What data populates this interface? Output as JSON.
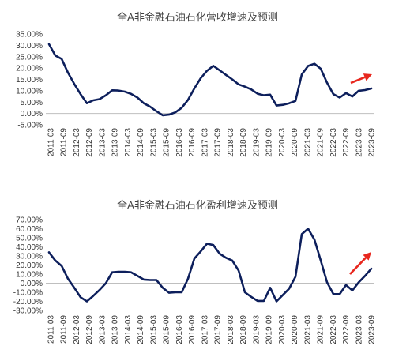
{
  "charts": [
    {
      "type": "line",
      "title": "全A非金融石油石化营收增速及预测",
      "xlabel": "",
      "ylabel": "",
      "ylim": [
        -5,
        35
      ],
      "yticks": [
        -5,
        0,
        5,
        10,
        15,
        20,
        25,
        30,
        35
      ],
      "ytick_labels": [
        "-5.00%",
        "0.00%",
        "5.00%",
        "10.00%",
        "15.00%",
        "20.00%",
        "25.00%",
        "30.00%",
        "35.00%"
      ],
      "categories": [
        "2011-03",
        "2011-09",
        "2012-03",
        "2012-09",
        "2013-03",
        "2013-09",
        "2014-03",
        "2014-09",
        "2015-03",
        "2015-09",
        "2016-03",
        "2016-09",
        "2017-03",
        "2017-09",
        "2018-03",
        "2018-09",
        "2019-03",
        "2019-09",
        "2020-03",
        "2020-09",
        "2021-03",
        "2021-09",
        "2022-03",
        "2022-09",
        "2023-03",
        "2023-09"
      ],
      "series": [
        {
          "values": [
            30.5,
            25.5,
            24,
            18,
            13,
            8.5,
            4.5,
            5.8,
            6.3,
            8,
            10.2,
            10.1,
            9.6,
            8.6,
            7,
            4.5,
            3,
            1,
            -0.8,
            -0.5,
            0.5,
            2.5,
            6,
            11,
            15.5,
            18.8,
            21,
            19,
            17,
            15,
            12.8,
            11.8,
            10.6,
            8.7,
            8,
            8.3,
            3.5,
            3.8,
            4.5,
            5.5,
            17.2,
            20.9,
            21.9,
            19.7,
            13.5,
            8.5,
            7,
            9,
            7.5,
            10,
            10.3,
            11
          ]
        }
      ],
      "color": "#0d1f5c",
      "arrow_color": "#e8271e",
      "grid": false,
      "legend": "none"
    },
    {
      "type": "line",
      "title": "全A非金融石油石化盈利增速及预测",
      "xlabel": "",
      "ylabel": "",
      "ylim": [
        -30,
        70
      ],
      "yticks": [
        -30,
        -20,
        -10,
        0,
        10,
        20,
        30,
        40,
        50,
        60,
        70
      ],
      "ytick_labels": [
        "-30.00%",
        "-20.00%",
        "-10.00%",
        "0.00%",
        "10.00%",
        "20.00%",
        "30.00%",
        "40.00%",
        "50.00%",
        "60.00%",
        "70.00%"
      ],
      "categories": [
        "2011-03",
        "2011-09",
        "2012-03",
        "2012-09",
        "2013-03",
        "2013-09",
        "2014-03",
        "2014-09",
        "2015-03",
        "2015-09",
        "2016-03",
        "2016-09",
        "2017-03",
        "2017-09",
        "2018-03",
        "2018-09",
        "2019-03",
        "2019-09",
        "2020-03",
        "2020-09",
        "2021-03",
        "2021-09",
        "2022-03",
        "2022-09",
        "2023-03",
        "2023-09"
      ],
      "series": [
        {
          "values": [
            34,
            25,
            19,
            5,
            -5,
            -15.5,
            -20,
            -14,
            -7.5,
            0,
            12,
            12.5,
            12.5,
            12,
            8,
            4,
            3.5,
            3.5,
            -5,
            -10.5,
            -10,
            -10,
            5,
            27,
            35,
            43.5,
            42,
            32.5,
            28,
            25,
            14,
            -10,
            -15,
            -19.5,
            -19.5,
            -5,
            -20,
            -13,
            -6,
            7,
            54,
            60,
            48,
            25,
            1,
            -12,
            -12,
            -2,
            -8,
            1,
            8,
            16
          ]
        }
      ],
      "color": "#0d1f5c",
      "arrow_color": "#e8271e",
      "grid": false,
      "legend": "none"
    }
  ]
}
